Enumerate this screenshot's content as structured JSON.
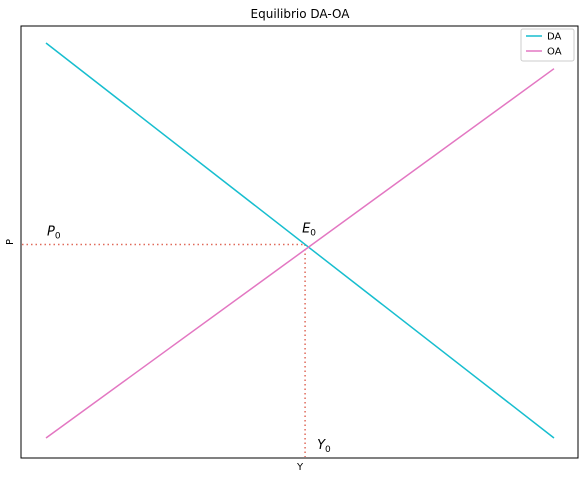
{
  "chart_data": {
    "type": "line",
    "title": "Equilibrio DA-OA",
    "xlabel": "Y",
    "ylabel": "P",
    "xticks": "none",
    "yticks": "none",
    "grid": false,
    "legend_position": "top-right",
    "series": [
      {
        "name": "DA",
        "color": "#17becf",
        "x": [
          0,
          10
        ],
        "y": [
          10,
          0
        ]
      },
      {
        "name": "OA",
        "color": "#e377c2",
        "x": [
          0,
          10
        ],
        "y": [
          0,
          9.35
        ]
      }
    ],
    "equilibrium": {
      "x": 5.1,
      "y": 4.9
    },
    "reference_line_color": "#e06a5a",
    "annotations": {
      "P0": {
        "base": "P",
        "sub": "0"
      },
      "E0": {
        "base": "E",
        "sub": "0"
      },
      "Y0": {
        "base": "Y",
        "sub": "0"
      }
    }
  }
}
